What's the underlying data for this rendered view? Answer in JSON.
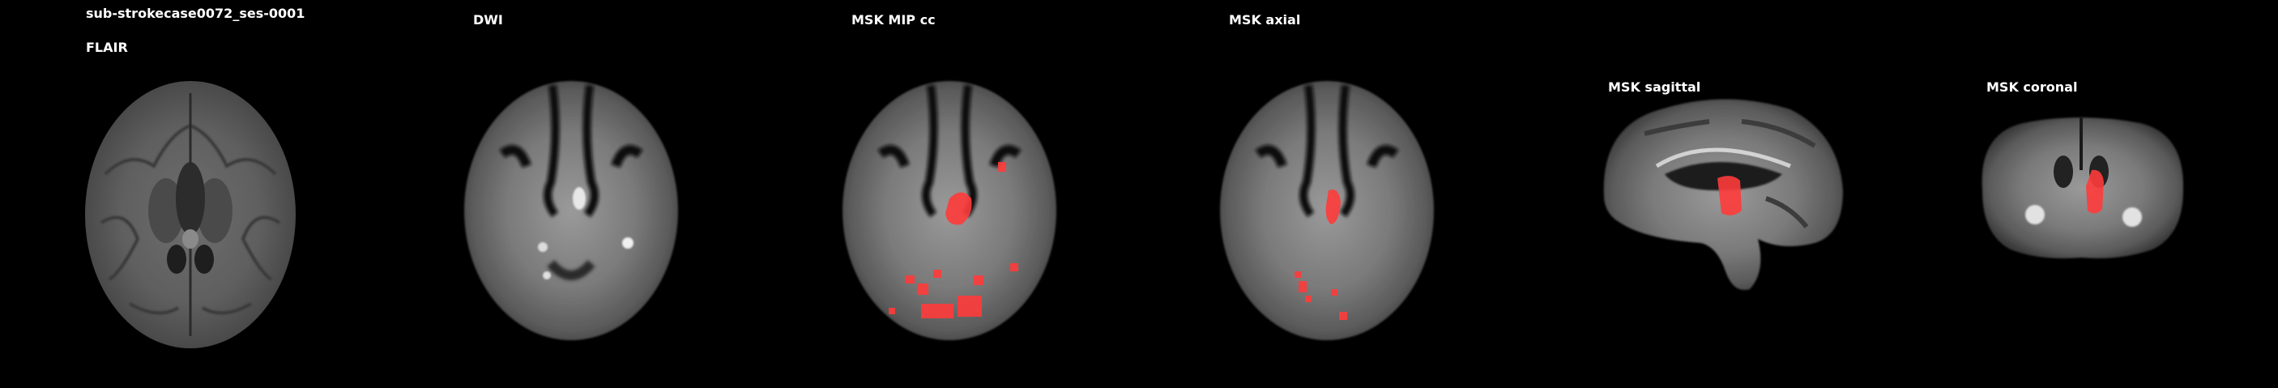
{
  "subject_title": "sub-strokecase0072_ses-0001",
  "panels": [
    {
      "id": "flair",
      "title": "FLAIR",
      "icon": "axial-brain-slice-image"
    },
    {
      "id": "dwi",
      "title": "DWI",
      "icon": "axial-brain-slice-image"
    },
    {
      "id": "msk-mip-cc",
      "title": "MSK MIP cc",
      "icon": "axial-brain-slice-with-lesion-mask-image"
    },
    {
      "id": "msk-axial",
      "title": "MSK axial",
      "icon": "axial-brain-slice-with-lesion-mask-image"
    },
    {
      "id": "msk-sagittal",
      "title": "MSK sagittal",
      "icon": "sagittal-brain-slice-with-lesion-mask-image"
    },
    {
      "id": "msk-coronal",
      "title": "MSK coronal",
      "icon": "coronal-brain-slice-with-lesion-mask-image"
    }
  ],
  "colors": {
    "background": "#000000",
    "text": "#ffffff",
    "lesion_mask": "#ff3b3b"
  }
}
